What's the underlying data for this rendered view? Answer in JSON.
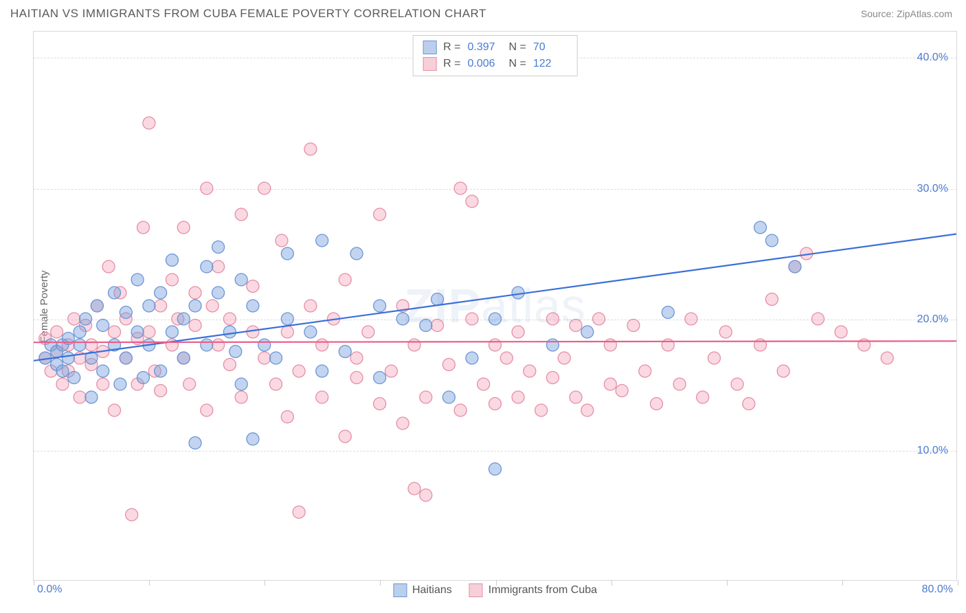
{
  "header": {
    "title": "HAITIAN VS IMMIGRANTS FROM CUBA FEMALE POVERTY CORRELATION CHART",
    "source": "Source: ZipAtlas.com"
  },
  "axes": {
    "y_label": "Female Poverty",
    "xlim": [
      0,
      80
    ],
    "ylim": [
      0,
      42
    ],
    "y_ticks": [
      10,
      20,
      30,
      40
    ],
    "y_tick_labels": [
      "10.0%",
      "20.0%",
      "30.0%",
      "40.0%"
    ],
    "x_ticks": [
      0,
      10,
      20,
      30,
      40,
      50,
      60,
      70,
      80
    ],
    "x_label_min": "0.0%",
    "x_label_max": "80.0%",
    "grid_color": "#dcdcdc",
    "tick_label_color": "#4a7bd0"
  },
  "watermark": "ZIPatlas",
  "series": [
    {
      "name": "Haitians",
      "color_fill": "rgba(120,160,220,0.45)",
      "color_stroke": "#6a95d5",
      "line_color": "#3a6fd8",
      "R": "0.397",
      "N": "70",
      "trend": {
        "x1": 0,
        "y1": 16.8,
        "x2": 80,
        "y2": 26.5
      },
      "points": [
        [
          1,
          17
        ],
        [
          1.5,
          18
        ],
        [
          2,
          16.5
        ],
        [
          2,
          17.5
        ],
        [
          2.5,
          18
        ],
        [
          2.5,
          16
        ],
        [
          3,
          17
        ],
        [
          3,
          18.5
        ],
        [
          3.5,
          15.5
        ],
        [
          4,
          18
        ],
        [
          4,
          19
        ],
        [
          4.5,
          20
        ],
        [
          5,
          14
        ],
        [
          5,
          17
        ],
        [
          5.5,
          21
        ],
        [
          6,
          19.5
        ],
        [
          6,
          16
        ],
        [
          7,
          18
        ],
        [
          7,
          22
        ],
        [
          7.5,
          15
        ],
        [
          8,
          20.5
        ],
        [
          8,
          17
        ],
        [
          9,
          23
        ],
        [
          9,
          19
        ],
        [
          9.5,
          15.5
        ],
        [
          10,
          21
        ],
        [
          10,
          18
        ],
        [
          11,
          22
        ],
        [
          11,
          16
        ],
        [
          12,
          24.5
        ],
        [
          12,
          19
        ],
        [
          13,
          17
        ],
        [
          13,
          20
        ],
        [
          14,
          21
        ],
        [
          14,
          10.5
        ],
        [
          15,
          24
        ],
        [
          15,
          18
        ],
        [
          16,
          22
        ],
        [
          16,
          25.5
        ],
        [
          17,
          19
        ],
        [
          17.5,
          17.5
        ],
        [
          18,
          23
        ],
        [
          18,
          15
        ],
        [
          19,
          21
        ],
        [
          19,
          10.8
        ],
        [
          20,
          18
        ],
        [
          21,
          17
        ],
        [
          22,
          25
        ],
        [
          22,
          20
        ],
        [
          24,
          19
        ],
        [
          25,
          26
        ],
        [
          25,
          16
        ],
        [
          27,
          17.5
        ],
        [
          28,
          25
        ],
        [
          30,
          21
        ],
        [
          30,
          15.5
        ],
        [
          32,
          20
        ],
        [
          34,
          19.5
        ],
        [
          35,
          21.5
        ],
        [
          36,
          14
        ],
        [
          38,
          17
        ],
        [
          40,
          20
        ],
        [
          40,
          8.5
        ],
        [
          42,
          22
        ],
        [
          45,
          18
        ],
        [
          48,
          19
        ],
        [
          55,
          20.5
        ],
        [
          63,
          27
        ],
        [
          64,
          26
        ],
        [
          66,
          24
        ]
      ]
    },
    {
      "name": "Immigrants from Cuba",
      "color_fill": "rgba(245,170,190,0.45)",
      "color_stroke": "#e58da5",
      "line_color": "#ea5e89",
      "R": "0.006",
      "N": "122",
      "trend": {
        "x1": 0,
        "y1": 18.2,
        "x2": 80,
        "y2": 18.3
      },
      "points": [
        [
          1,
          17
        ],
        [
          1,
          18.5
        ],
        [
          1.5,
          16
        ],
        [
          2,
          17.5
        ],
        [
          2,
          19
        ],
        [
          2.5,
          15
        ],
        [
          3,
          18
        ],
        [
          3,
          16
        ],
        [
          3.5,
          20
        ],
        [
          4,
          17
        ],
        [
          4,
          14
        ],
        [
          4.5,
          19.5
        ],
        [
          5,
          16.5
        ],
        [
          5,
          18
        ],
        [
          5.5,
          21
        ],
        [
          6,
          15
        ],
        [
          6,
          17.5
        ],
        [
          6.5,
          24
        ],
        [
          7,
          19
        ],
        [
          7,
          13
        ],
        [
          7.5,
          22
        ],
        [
          8,
          17
        ],
        [
          8,
          20
        ],
        [
          8.5,
          5
        ],
        [
          9,
          18.5
        ],
        [
          9,
          15
        ],
        [
          9.5,
          27
        ],
        [
          10,
          19
        ],
        [
          10,
          35
        ],
        [
          10.5,
          16
        ],
        [
          11,
          21
        ],
        [
          11,
          14.5
        ],
        [
          12,
          18
        ],
        [
          12,
          23
        ],
        [
          12.5,
          20
        ],
        [
          13,
          17
        ],
        [
          13,
          27
        ],
        [
          13.5,
          15
        ],
        [
          14,
          22
        ],
        [
          14,
          19.5
        ],
        [
          15,
          30
        ],
        [
          15,
          13
        ],
        [
          15.5,
          21
        ],
        [
          16,
          18
        ],
        [
          16,
          24
        ],
        [
          17,
          16.5
        ],
        [
          17,
          20
        ],
        [
          18,
          28
        ],
        [
          18,
          14
        ],
        [
          19,
          19
        ],
        [
          19,
          22.5
        ],
        [
          20,
          17
        ],
        [
          20,
          30
        ],
        [
          21,
          15
        ],
        [
          21.5,
          26
        ],
        [
          22,
          12.5
        ],
        [
          22,
          19
        ],
        [
          23,
          16
        ],
        [
          23,
          5.2
        ],
        [
          24,
          21
        ],
        [
          24,
          33
        ],
        [
          25,
          18
        ],
        [
          25,
          14
        ],
        [
          26,
          20
        ],
        [
          27,
          11
        ],
        [
          27,
          23
        ],
        [
          28,
          17
        ],
        [
          28,
          15.5
        ],
        [
          29,
          19
        ],
        [
          30,
          13.5
        ],
        [
          30,
          28
        ],
        [
          31,
          16
        ],
        [
          32,
          12
        ],
        [
          32,
          21
        ],
        [
          33,
          18
        ],
        [
          33,
          7
        ],
        [
          34,
          14
        ],
        [
          34,
          6.5
        ],
        [
          35,
          19.5
        ],
        [
          36,
          16.5
        ],
        [
          37,
          30
        ],
        [
          37,
          13
        ],
        [
          38,
          20
        ],
        [
          38,
          29
        ],
        [
          39,
          15
        ],
        [
          40,
          18
        ],
        [
          40,
          13.5
        ],
        [
          41,
          17
        ],
        [
          42,
          14
        ],
        [
          42,
          19
        ],
        [
          43,
          16
        ],
        [
          44,
          13
        ],
        [
          45,
          20
        ],
        [
          45,
          15.5
        ],
        [
          46,
          17
        ],
        [
          47,
          14
        ],
        [
          47,
          19.5
        ],
        [
          48,
          13
        ],
        [
          49,
          20
        ],
        [
          50,
          15
        ],
        [
          50,
          18
        ],
        [
          51,
          14.5
        ],
        [
          52,
          19.5
        ],
        [
          53,
          16
        ],
        [
          54,
          13.5
        ],
        [
          55,
          18
        ],
        [
          56,
          15
        ],
        [
          57,
          20
        ],
        [
          58,
          14
        ],
        [
          59,
          17
        ],
        [
          60,
          19
        ],
        [
          61,
          15
        ],
        [
          62,
          13.5
        ],
        [
          63,
          18
        ],
        [
          64,
          21.5
        ],
        [
          65,
          16
        ],
        [
          66,
          24
        ],
        [
          67,
          25
        ],
        [
          68,
          20
        ],
        [
          70,
          19
        ],
        [
          72,
          18
        ],
        [
          74,
          17
        ]
      ]
    }
  ],
  "legend_bottom": {
    "items": [
      {
        "label": "Haitians",
        "swatch_class": "swatch-blue"
      },
      {
        "label": "Immigrants from Cuba",
        "swatch_class": "swatch-pink"
      }
    ]
  },
  "style": {
    "marker_radius": 9,
    "marker_stroke_width": 1.3,
    "trend_line_width": 2.2,
    "background": "#ffffff"
  }
}
